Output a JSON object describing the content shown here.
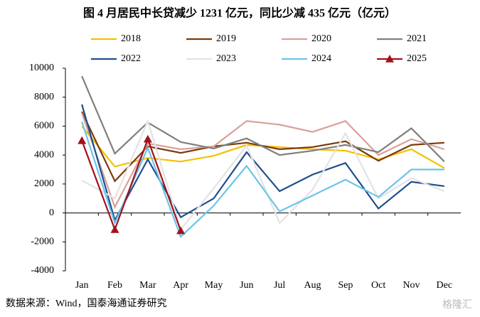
{
  "chart_data": {
    "type": "line",
    "title": "图  4 月居民中长贷减少 1231 亿元，同比少减 435 亿元（亿元）",
    "source": "数据来源：Wind，国泰海通证券研究",
    "watermark": "格隆汇",
    "categories": [
      "Jan",
      "Feb",
      "Mar",
      "Apr",
      "May",
      "Jun",
      "Jul",
      "Aug",
      "Sep",
      "Oct",
      "Nov",
      "Dec"
    ],
    "ylim": [
      -4000,
      10000
    ],
    "yticks": [
      -4000,
      -2000,
      0,
      2000,
      4000,
      6000,
      8000,
      10000
    ],
    "grid": false,
    "series": [
      {
        "name": "2018",
        "color": "#f5c000",
        "values": [
          6000,
          3200,
          3800,
          3550,
          3950,
          4700,
          4550,
          4400,
          4300,
          3700,
          4400,
          3100
        ]
      },
      {
        "name": "2019",
        "color": "#7b3b0c",
        "values": [
          7000,
          2200,
          4600,
          4150,
          4600,
          4850,
          4400,
          4550,
          4950,
          3600,
          4700,
          4850
        ]
      },
      {
        "name": "2020",
        "color": "#d9a19a",
        "values": [
          6900,
          400,
          4800,
          4400,
          4600,
          6350,
          6100,
          5600,
          6350,
          4000,
          5100,
          4400
        ]
      },
      {
        "name": "2021",
        "color": "#7f7f7f",
        "values": [
          9450,
          4100,
          6250,
          4900,
          4450,
          5150,
          4000,
          4300,
          4700,
          4200,
          5850,
          3550
        ]
      },
      {
        "name": "2022",
        "color": "#1f4e8c",
        "values": [
          7500,
          -500,
          3700,
          -300,
          1000,
          4200,
          1500,
          2650,
          3450,
          300,
          2150,
          1850
        ]
      },
      {
        "name": "2023",
        "color": "#e3e3e3",
        "values": [
          2250,
          1000,
          6350,
          -1150,
          1700,
          4650,
          -700,
          1600,
          5500,
          1000,
          2400,
          1500
        ]
      },
      {
        "name": "2024",
        "color": "#6cc4ea",
        "values": [
          6300,
          -700,
          4500,
          -1650,
          500,
          3250,
          100,
          1200,
          2300,
          1100,
          3000,
          3000
        ]
      },
      {
        "name": "2025",
        "color": "#a3111b",
        "marker": "triangle",
        "values": [
          5000,
          -1150,
          5100,
          -1231,
          null,
          null,
          null,
          null,
          null,
          null,
          null,
          null
        ]
      }
    ]
  }
}
